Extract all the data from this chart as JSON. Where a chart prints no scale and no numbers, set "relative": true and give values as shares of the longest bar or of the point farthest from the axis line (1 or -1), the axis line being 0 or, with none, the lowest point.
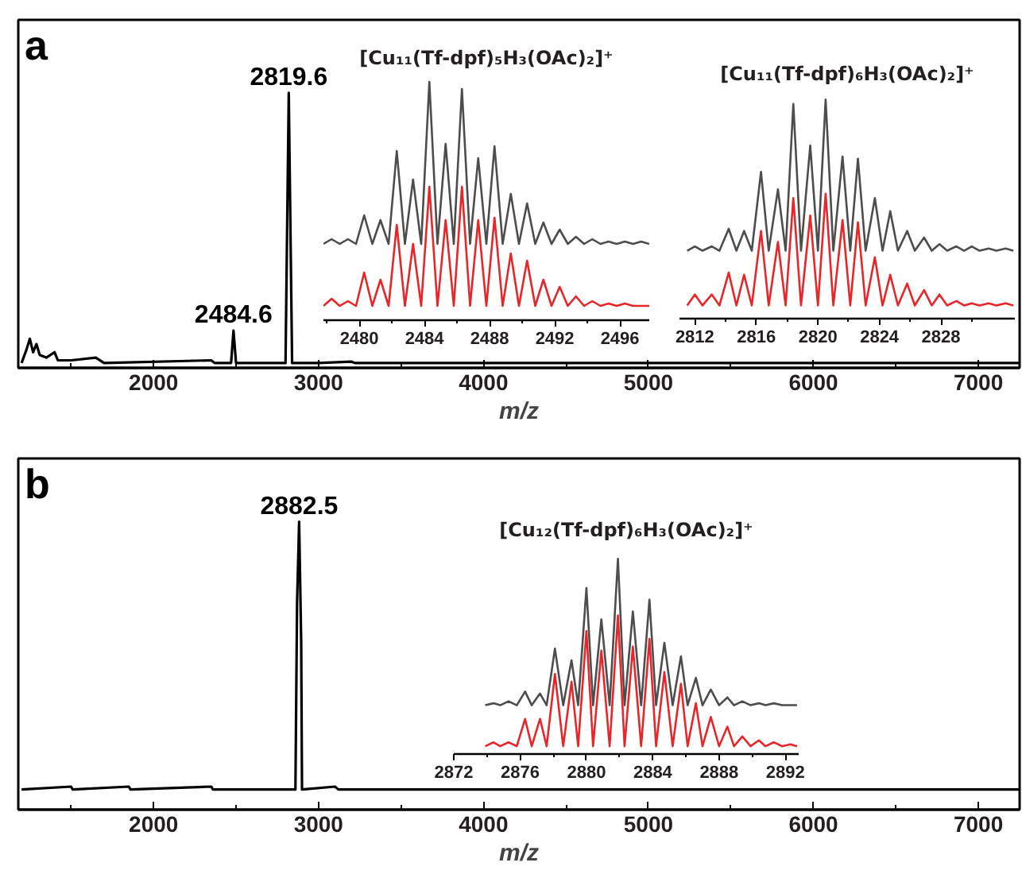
{
  "chart_data": [
    {
      "type": "line",
      "relative": true,
      "xlabel": "m/z",
      "xlim": [
        1180,
        7250
      ],
      "xticks": [
        {
          "value": 1500,
          "label": null
        },
        2000,
        {
          "value": 2500,
          "label": null
        },
        3000,
        {
          "value": 3500,
          "label": null
        },
        4000,
        {
          "value": 4500,
          "label": null
        },
        5000,
        {
          "value": 5500,
          "label": null
        },
        6000,
        {
          "value": 6500,
          "label": null
        },
        7000
      ],
      "series": [
        {
          "color": "#000000",
          "x": [
            1200,
            1230,
            1250,
            1270,
            1290,
            1310,
            1350,
            1400,
            1420,
            1500,
            1650,
            1700,
            2350,
            2370,
            2470,
            2484.6,
            2500,
            2800,
            2819.6,
            2840,
            3000,
            3200,
            3220,
            7250
          ],
          "values": [
            0,
            0.05,
            0.09,
            0.04,
            0.07,
            0.03,
            0.02,
            0.04,
            0.01,
            0.01,
            0.02,
            0,
            0.01,
            0,
            0,
            0.12,
            0,
            0,
            1.0,
            0,
            0,
            0.005,
            0,
            0
          ]
        }
      ],
      "annotations": [
        "a",
        {
          "text": "2819.6",
          "x": 2819.6,
          "y": 1.0
        },
        {
          "text": "2484.6",
          "x": 2484.6,
          "y": 0.12
        }
      ]
    },
    {
      "type": "line",
      "relative": true,
      "title": "[Cu₁₁(Tf-dpf)₅H₃(OAc)₂]⁺",
      "xlim": [
        2477.8,
        2497.8
      ],
      "xticks": [
        {
          "value": 2478,
          "label": null
        },
        2480,
        {
          "value": 2482,
          "label": null
        },
        2484,
        {
          "value": 2486,
          "label": null
        },
        2488,
        {
          "value": 2490,
          "label": null
        },
        2492,
        {
          "value": 2494,
          "label": null
        },
        2496
      ],
      "x": [
        2477.8,
        2478.3,
        2478.8,
        2479.3,
        2479.8,
        2480.3,
        2480.8,
        2481.3,
        2481.8,
        2482.3,
        2482.8,
        2483.3,
        2483.8,
        2484.3,
        2484.8,
        2485.3,
        2485.8,
        2486.3,
        2486.8,
        2487.3,
        2487.8,
        2488.3,
        2488.8,
        2489.3,
        2489.8,
        2490.3,
        2490.8,
        2491.3,
        2491.8,
        2492.3,
        2492.8,
        2493.3,
        2493.8,
        2494.3,
        2494.8,
        2495.3,
        2495.8,
        2496.3,
        2496.8,
        2497.3,
        2497.8
      ],
      "series": [
        {
          "color": "#4d4d4d",
          "values": [
            0.32,
            0.34,
            0.32,
            0.34,
            0.32,
            0.44,
            0.32,
            0.42,
            0.32,
            0.71,
            0.32,
            0.59,
            0.32,
            1.0,
            0.32,
            0.74,
            0.32,
            0.97,
            0.32,
            0.68,
            0.32,
            0.73,
            0.32,
            0.53,
            0.32,
            0.49,
            0.32,
            0.41,
            0.32,
            0.38,
            0.32,
            0.35,
            0.32,
            0.34,
            0.32,
            0.33,
            0.32,
            0.33,
            0.32,
            0.33,
            0.32
          ]
        },
        {
          "color": "#e8262a",
          "values": [
            0.06,
            0.09,
            0.06,
            0.08,
            0.06,
            0.2,
            0.06,
            0.17,
            0.06,
            0.4,
            0.06,
            0.32,
            0.06,
            0.56,
            0.06,
            0.42,
            0.06,
            0.56,
            0.06,
            0.42,
            0.06,
            0.43,
            0.06,
            0.28,
            0.06,
            0.25,
            0.06,
            0.17,
            0.06,
            0.14,
            0.06,
            0.1,
            0.06,
            0.08,
            0.06,
            0.07,
            0.06,
            0.07,
            0.06,
            0.06,
            0.06
          ]
        }
      ]
    },
    {
      "type": "line",
      "relative": true,
      "title": "[Cu₁₁(Tf-dpf)₆H₃(OAc)₂]⁺",
      "xlim": [
        2811,
        2832.8
      ],
      "xticks": [
        2812,
        {
          "value": 2814,
          "label": null
        },
        2816,
        {
          "value": 2818,
          "label": null
        },
        2820,
        {
          "value": 2822,
          "label": null
        },
        2824,
        {
          "value": 2826,
          "label": null
        },
        2828,
        {
          "value": 2830,
          "label": null
        }
      ],
      "x": [
        2811.5,
        2812.0,
        2812.5,
        2813.1,
        2813.6,
        2814.2,
        2814.7,
        2815.2,
        2815.7,
        2816.3,
        2816.8,
        2817.4,
        2817.9,
        2818.4,
        2818.9,
        2819.5,
        2820.0,
        2820.5,
        2821.0,
        2821.6,
        2822.1,
        2822.6,
        2823.1,
        2823.7,
        2824.2,
        2824.7,
        2825.2,
        2825.8,
        2826.3,
        2826.9,
        2827.4,
        2827.9,
        2828.4,
        2829.0,
        2829.5,
        2830.0,
        2830.5,
        2831.1,
        2831.6,
        2832.2,
        2832.7
      ],
      "series": [
        {
          "color": "#4d4d4d",
          "values": [
            0.31,
            0.33,
            0.31,
            0.33,
            0.31,
            0.41,
            0.31,
            0.4,
            0.31,
            0.67,
            0.31,
            0.59,
            0.31,
            0.98,
            0.31,
            0.79,
            0.31,
            1.0,
            0.31,
            0.74,
            0.31,
            0.73,
            0.31,
            0.55,
            0.31,
            0.49,
            0.31,
            0.4,
            0.31,
            0.37,
            0.31,
            0.34,
            0.31,
            0.33,
            0.31,
            0.33,
            0.31,
            0.32,
            0.31,
            0.32,
            0.31
          ]
        },
        {
          "color": "#e8262a",
          "values": [
            0.06,
            0.11,
            0.06,
            0.11,
            0.06,
            0.21,
            0.06,
            0.2,
            0.06,
            0.4,
            0.06,
            0.35,
            0.06,
            0.55,
            0.06,
            0.47,
            0.06,
            0.57,
            0.06,
            0.45,
            0.06,
            0.44,
            0.06,
            0.28,
            0.06,
            0.2,
            0.06,
            0.16,
            0.06,
            0.13,
            0.06,
            0.11,
            0.06,
            0.08,
            0.06,
            0.07,
            0.06,
            0.07,
            0.06,
            0.07,
            0.06
          ]
        }
      ]
    },
    {
      "type": "line",
      "relative": true,
      "xlabel": "m/z",
      "xlim": [
        1180,
        7250
      ],
      "xticks": [
        {
          "value": 1500,
          "label": null
        },
        2000,
        {
          "value": 2500,
          "label": null
        },
        3000,
        {
          "value": 3500,
          "label": null
        },
        4000,
        {
          "value": 4500,
          "label": null
        },
        5000,
        {
          "value": 5500,
          "label": null
        },
        6000,
        {
          "value": 6500,
          "label": null
        },
        7000
      ],
      "series": [
        {
          "color": "#000000",
          "x": [
            1200,
            1500,
            1510,
            1850,
            1860,
            2350,
            2360,
            2860,
            2870,
            2882.5,
            2895,
            2900,
            3100,
            3120,
            7250
          ],
          "values": [
            0.07,
            0.08,
            0.07,
            0.08,
            0.07,
            0.08,
            0.07,
            0.07,
            0.72,
            1.0,
            0.58,
            0.07,
            0.08,
            0.07,
            0.07
          ]
        }
      ],
      "annotations": [
        "b",
        {
          "text": "2882.5",
          "x": 2882.5,
          "y": 1.0
        }
      ]
    },
    {
      "type": "line",
      "relative": true,
      "title": "[Cu₁₂(Tf-dpf)₆H₃(OAc)₂]⁺",
      "xlim": [
        2872,
        2892.8
      ],
      "xticks": [
        2872,
        {
          "value": 2874,
          "label": null
        },
        2876,
        {
          "value": 2878,
          "label": null
        },
        2880,
        {
          "value": 2882,
          "label": null
        },
        2884,
        {
          "value": 2886,
          "label": null
        },
        2888,
        {
          "value": 2890,
          "label": null
        },
        2892
      ],
      "x": [
        2873.9,
        2874.4,
        2874.8,
        2875.3,
        2875.8,
        2876.3,
        2876.7,
        2877.2,
        2877.6,
        2878.1,
        2878.6,
        2879.1,
        2879.5,
        2880.0,
        2880.4,
        2880.9,
        2881.4,
        2881.9,
        2882.3,
        2882.8,
        2883.3,
        2883.8,
        2884.2,
        2884.7,
        2885.2,
        2885.7,
        2886.1,
        2886.6,
        2887.0,
        2887.5,
        2888.0,
        2888.5,
        2888.9,
        2889.4,
        2889.9,
        2890.4,
        2890.8,
        2891.3,
        2891.8,
        2892.3,
        2892.7
      ],
      "series": [
        {
          "color": "#4d4d4d",
          "values": [
            0.25,
            0.26,
            0.25,
            0.27,
            0.25,
            0.32,
            0.25,
            0.31,
            0.25,
            0.54,
            0.25,
            0.48,
            0.25,
            0.85,
            0.25,
            0.69,
            0.25,
            1.0,
            0.25,
            0.73,
            0.25,
            0.79,
            0.25,
            0.57,
            0.25,
            0.5,
            0.25,
            0.39,
            0.25,
            0.33,
            0.25,
            0.29,
            0.25,
            0.27,
            0.25,
            0.26,
            0.25,
            0.26,
            0.25,
            0.25,
            0.25
          ]
        },
        {
          "color": "#e8262a",
          "values": [
            0.04,
            0.06,
            0.04,
            0.06,
            0.04,
            0.18,
            0.04,
            0.18,
            0.04,
            0.41,
            0.04,
            0.37,
            0.04,
            0.63,
            0.04,
            0.53,
            0.04,
            0.71,
            0.04,
            0.55,
            0.04,
            0.59,
            0.04,
            0.42,
            0.04,
            0.36,
            0.04,
            0.26,
            0.04,
            0.19,
            0.04,
            0.14,
            0.04,
            0.09,
            0.04,
            0.07,
            0.04,
            0.06,
            0.04,
            0.05,
            0.04
          ]
        }
      ]
    }
  ]
}
